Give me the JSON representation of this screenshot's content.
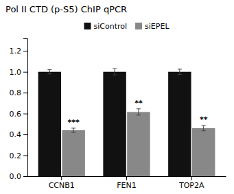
{
  "chart_data": {
    "type": "bar",
    "title": "Pol II CTD (p-S5) ChIP qPCR",
    "categories": [
      "CCNB1",
      "FEN1",
      "TOP2A"
    ],
    "series": [
      {
        "name": "siControl",
        "color": "#111111",
        "values": [
          1.0,
          1.0,
          1.0
        ],
        "errors": [
          0.02,
          0.03,
          0.025
        ]
      },
      {
        "name": "siEPEL",
        "color": "#888888",
        "values": [
          0.44,
          0.615,
          0.46
        ],
        "errors": [
          0.02,
          0.03,
          0.025
        ],
        "annotations": [
          "***",
          "**",
          "**"
        ]
      }
    ],
    "ylim": [
      0,
      1.32
    ],
    "yticks": [
      {
        "value": 0,
        "label": "0.0"
      },
      0.2,
      0.4,
      0.6,
      0.8,
      {
        "value": 1.0,
        "label": "1.0"
      },
      1.2
    ],
    "legend": "top",
    "grid": false
  }
}
